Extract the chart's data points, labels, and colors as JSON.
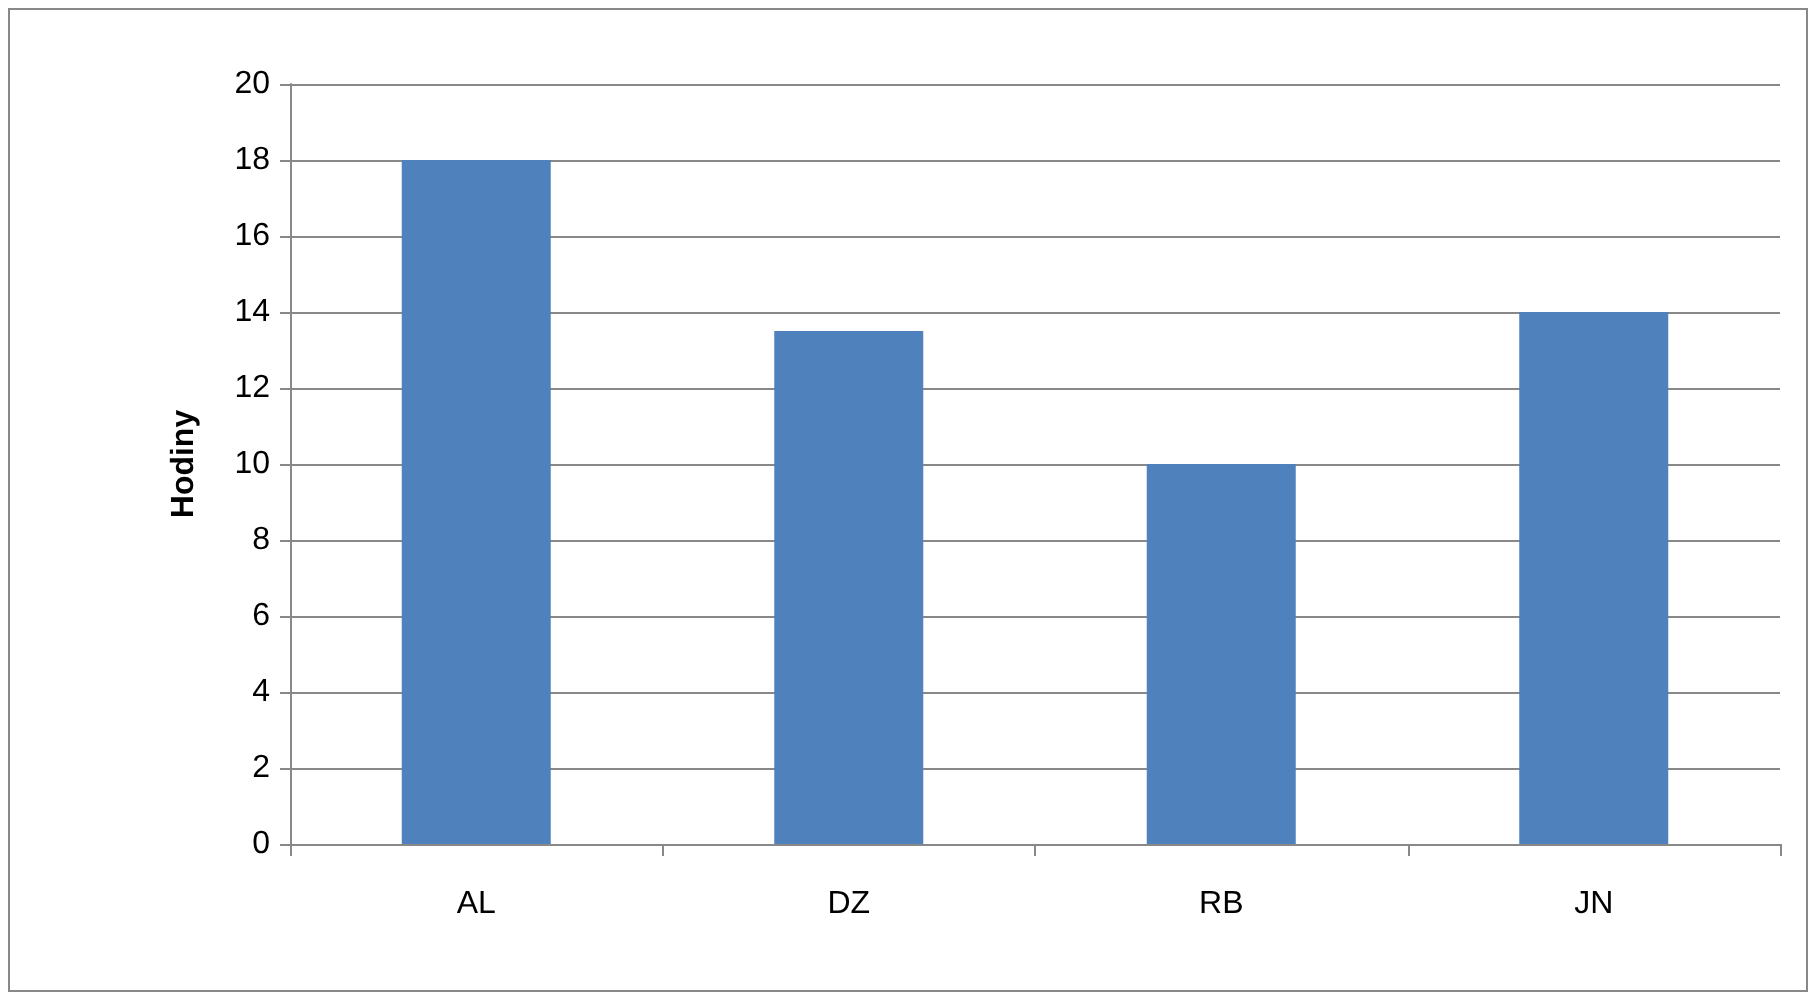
{
  "chart_data": {
    "type": "bar",
    "ylabel": "Hodiny",
    "categories": [
      "AL",
      "DZ",
      "RB",
      "JN"
    ],
    "values": [
      18,
      13.5,
      10,
      14
    ],
    "color": "#4f81bd",
    "ylim": [
      0,
      20
    ],
    "yticks": [
      0,
      2,
      4,
      6,
      8,
      10,
      12,
      14,
      16,
      18,
      20
    ],
    "grid": "y"
  }
}
